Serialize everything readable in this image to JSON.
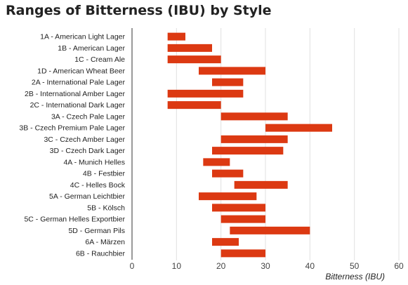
{
  "chart_data": {
    "type": "bar",
    "orientation": "horizontal-floating-range",
    "title": "Ranges of Bitterness (IBU) by Style",
    "xlabel": "Bitterness (IBU)",
    "ylabel": "",
    "xlim": [
      0,
      60
    ],
    "xticks": [
      0,
      10,
      20,
      30,
      40,
      50,
      60
    ],
    "grid": true,
    "legend": "none",
    "bar_color": "#dc3912",
    "categories": [
      "1A - American Light Lager",
      "1B - American Lager",
      "1C - Cream Ale",
      "1D - American Wheat Beer",
      "2A - International Pale Lager",
      "2B - International Amber Lager",
      "2C - International Dark Lager",
      "3A - Czech Pale Lager",
      "3B - Czech Premium Pale Lager",
      "3C - Czech Amber Lager",
      "3D - Czech Dark Lager",
      "4A - Munich Helles",
      "4B - Festbier",
      "4C - Helles Bock",
      "5A - German Leichtbier",
      "5B - Kölsch",
      "5C - German Helles Exportbier",
      "5D - German Pils",
      "6A - Märzen",
      "6B - Rauchbier"
    ],
    "ranges": [
      [
        8,
        12
      ],
      [
        8,
        18
      ],
      [
        8,
        20
      ],
      [
        15,
        30
      ],
      [
        18,
        25
      ],
      [
        8,
        25
      ],
      [
        8,
        20
      ],
      [
        20,
        35
      ],
      [
        30,
        45
      ],
      [
        20,
        35
      ],
      [
        18,
        34
      ],
      [
        16,
        22
      ],
      [
        18,
        25
      ],
      [
        23,
        35
      ],
      [
        15,
        28
      ],
      [
        18,
        30
      ],
      [
        20,
        30
      ],
      [
        22,
        40
      ],
      [
        18,
        24
      ],
      [
        20,
        30
      ]
    ]
  }
}
